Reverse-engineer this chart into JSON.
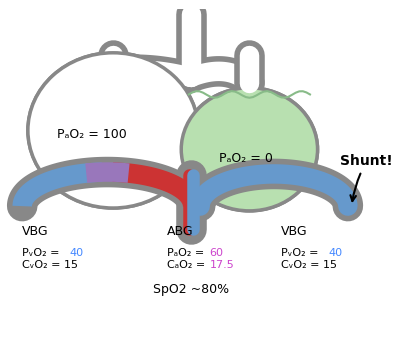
{
  "bg_color": "#ffffff",
  "gray_color": "#888888",
  "blue_color": "#6699cc",
  "purple_color": "#9977bb",
  "red_color": "#cc3333",
  "green_fill": "#b8e0b0",
  "green_outline": "#88bb88",
  "text_black": "#000000",
  "text_blue": "#4488ff",
  "text_magenta": "#cc44cc",
  "left_alv_label": "PₐO₂ = 100",
  "right_alv_label": "PₐO₂ = 0",
  "left_vbg": "VBG",
  "left_pvo2_pre": "PᵥO₂ = ",
  "left_pvo2_val": "40",
  "left_cvo2": "CᵥO₂ = 15",
  "abg": "ABG",
  "abg_pao2_pre": "PₐO₂ = ",
  "abg_pao2_val": "60",
  "abg_cao2_pre": "CₐO₂ = ",
  "abg_cao2_val": "17.5",
  "right_vbg": "VBG",
  "right_pvo2_pre": "PᵥO₂ = ",
  "right_pvo2_val": "40",
  "right_cvo2": "CᵥO₂ = 15",
  "shunt_label": "Shunt!",
  "spo2_label": "SpO2 ~80%"
}
